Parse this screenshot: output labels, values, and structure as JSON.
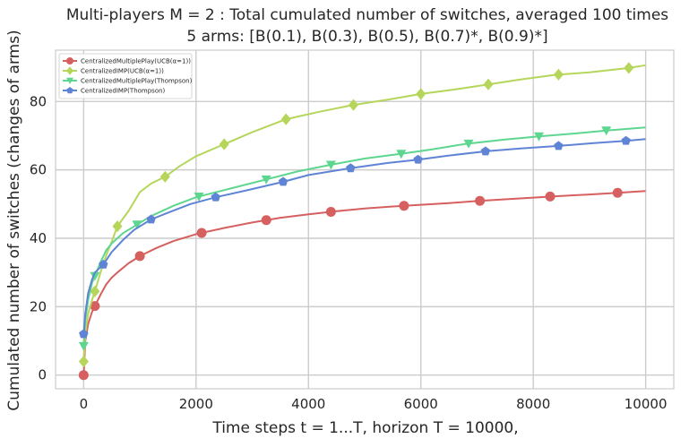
{
  "chart_data": {
    "type": "line",
    "title": "Multi-players M = 2 : Total cumulated number of switches, averaged 100 times",
    "subtitle": "5 arms: [B(0.1), B(0.3), B(0.5), B(0.7)*, B(0.9)*]",
    "xlabel": "Time steps t = 1...T, horizon T = 10000,",
    "ylabel": "Cumulated number of switches (changes of arms)",
    "xlim": [
      -500,
      10500
    ],
    "ylim": [
      -4,
      95
    ],
    "xticks": [
      0,
      2000,
      4000,
      6000,
      8000,
      10000
    ],
    "yticks": [
      0,
      20,
      40,
      60,
      80
    ],
    "grid": true,
    "legend_position": "top-left",
    "series": [
      {
        "name": "CentralizedMultiplePlay(UCB(α=1))",
        "color": "#d65f5f",
        "marker": "circle",
        "x": [
          0,
          30,
          80,
          150,
          200,
          300,
          400,
          500,
          600,
          800,
          1000,
          1300,
          1600,
          2000,
          2500,
          3000,
          3500,
          4000,
          4500,
          5000,
          5500,
          6000,
          6500,
          7000,
          7500,
          8000,
          8500,
          9000,
          9500,
          10000
        ],
        "y": [
          0,
          10,
          15,
          18.5,
          20.2,
          23.5,
          26.5,
          28.5,
          30,
          32.7,
          34.8,
          37.2,
          39.2,
          41.2,
          43.0,
          44.6,
          46.0,
          47.0,
          47.9,
          48.7,
          49.3,
          49.8,
          50.3,
          50.9,
          51.4,
          51.9,
          52.4,
          52.8,
          53.3,
          53.8
        ],
        "marker_x": [
          0,
          200,
          1000,
          2100,
          3250,
          4400,
          5700,
          7050,
          8300,
          9500
        ]
      },
      {
        "name": "CentralizedIMP(UCB(α=1))",
        "color": "#b5d65b",
        "marker": "diamond",
        "x": [
          0,
          30,
          80,
          150,
          200,
          300,
          400,
          500,
          600,
          800,
          1000,
          1200,
          1450,
          1700,
          2000,
          2500,
          3000,
          3600,
          4200,
          4800,
          5400,
          6000,
          6600,
          7200,
          7800,
          8400,
          9000,
          9700,
          10000
        ],
        "y": [
          4,
          12,
          18,
          22,
          24.5,
          30,
          35,
          39,
          43.5,
          48,
          53.5,
          56,
          58,
          61,
          64,
          67.5,
          71,
          74.8,
          77,
          79,
          80.5,
          82.2,
          83.5,
          85,
          86.5,
          87.8,
          88.5,
          89.8,
          90.6
        ],
        "marker_x": [
          0,
          200,
          600,
          1450,
          2500,
          3600,
          4800,
          6000,
          7200,
          8450,
          9700
        ]
      },
      {
        "name": "CentralizedMultiplePlay(Thompson)",
        "color": "#5dd68f",
        "marker": "triangle-down",
        "x": [
          0,
          30,
          80,
          150,
          200,
          300,
          400,
          500,
          700,
          950,
          1200,
          1600,
          2000,
          2600,
          3250,
          3800,
          4400,
          5000,
          5700,
          6200,
          6800,
          7500,
          8100,
          8700,
          9300,
          10000
        ],
        "y": [
          8.5,
          16,
          22,
          27,
          29,
          33,
          36.5,
          38.5,
          41.5,
          44,
          46.5,
          49.5,
          52,
          54.5,
          57.2,
          59.5,
          61.5,
          63.3,
          64.8,
          66,
          67.6,
          68.9,
          69.8,
          70.6,
          71.5,
          72.4
        ],
        "marker_x": [
          0,
          200,
          950,
          2050,
          3250,
          4400,
          5650,
          6850,
          8100,
          9300
        ]
      },
      {
        "name": "CentralizedIMP(Thompson)",
        "color": "#5f84d6",
        "marker": "pentagon",
        "x": [
          0,
          30,
          80,
          150,
          200,
          350,
          500,
          700,
          900,
          1200,
          1500,
          1900,
          2350,
          2900,
          3550,
          4000,
          4750,
          5400,
          5950,
          6500,
          7200,
          7800,
          8450,
          9050,
          9650,
          10000
        ],
        "y": [
          12,
          18,
          24,
          28,
          30,
          32.3,
          36,
          39.5,
          42.5,
          45.5,
          47.5,
          50,
          52,
          54,
          56.5,
          58.5,
          60.5,
          62,
          63,
          64.2,
          65.5,
          66.3,
          67,
          67.8,
          68.5,
          69
        ],
        "marker_x": [
          0,
          350,
          1200,
          2350,
          3550,
          4750,
          5950,
          7150,
          8450,
          9650
        ]
      }
    ]
  }
}
